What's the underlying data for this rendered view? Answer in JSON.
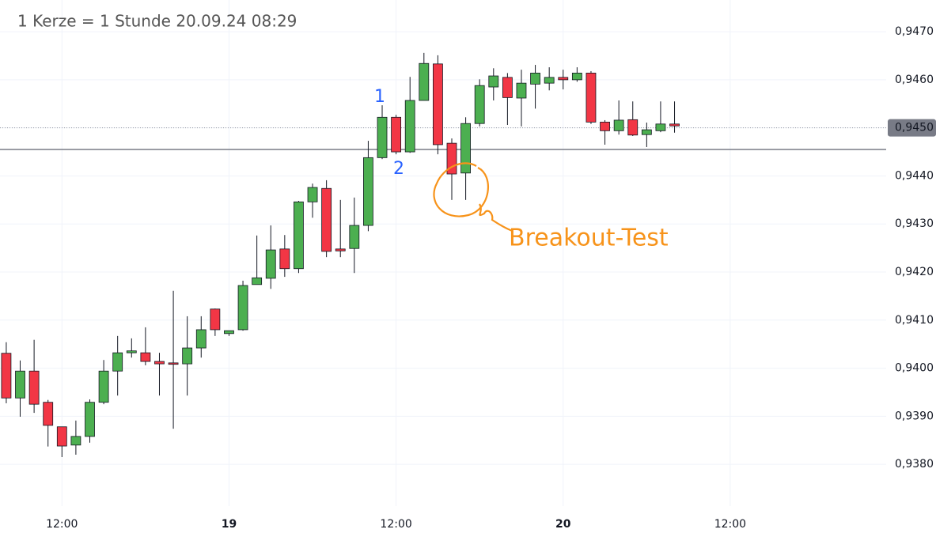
{
  "chart_data": {
    "type": "candlestick",
    "title": "1 Kerze = 1 Stunde  20.09.24  08:29",
    "x": [
      8,
      9,
      10,
      11,
      12,
      13,
      14,
      15,
      16,
      17,
      18,
      19,
      20,
      21,
      22,
      23,
      24,
      25,
      26,
      27,
      28,
      29,
      30,
      31,
      32,
      33,
      34,
      35,
      36,
      37,
      38,
      39,
      40,
      41,
      42,
      43,
      44,
      45,
      46,
      47,
      48,
      49,
      50,
      51,
      52,
      53,
      54,
      55,
      56
    ],
    "open": [
      0.94031,
      0.93938,
      0.93994,
      0.93929,
      0.93878,
      0.9384,
      0.93858,
      0.93929,
      0.93994,
      0.94032,
      0.94032,
      0.94014,
      0.94011,
      0.94009,
      0.94042,
      0.94123,
      0.94072,
      0.9408,
      0.94174,
      0.94187,
      0.94248,
      0.94207,
      0.94346,
      0.94374,
      0.94248,
      0.94249,
      0.94297,
      0.94438,
      0.94522,
      0.9445,
      0.94557,
      0.94633,
      0.94468,
      0.94406,
      0.94509,
      0.94585,
      0.94605,
      0.94562,
      0.94591,
      0.94593,
      0.94605,
      0.946,
      0.94614,
      0.94512,
      0.94494,
      0.94517,
      0.94486,
      0.94494,
      0.94508
    ],
    "high": [
      0.94054,
      0.94016,
      0.94059,
      0.93934,
      0.93878,
      0.93891,
      0.93935,
      0.94017,
      0.94067,
      0.94062,
      0.94085,
      0.94032,
      0.94161,
      0.94108,
      0.94108,
      0.94124,
      0.94078,
      0.94182,
      0.94276,
      0.94297,
      0.94277,
      0.94348,
      0.94384,
      0.94391,
      0.9435,
      0.94355,
      0.94473,
      0.94547,
      0.94527,
      0.94606,
      0.94656,
      0.94651,
      0.94478,
      0.94522,
      0.94601,
      0.94624,
      0.94614,
      0.94621,
      0.94631,
      0.94626,
      0.94621,
      0.94626,
      0.94618,
      0.94516,
      0.94557,
      0.94555,
      0.94511,
      0.94555,
      0.94555
    ],
    "low": [
      0.93927,
      0.93899,
      0.93907,
      0.93837,
      0.93815,
      0.9382,
      0.93845,
      0.93925,
      0.93943,
      0.94022,
      0.94006,
      0.93943,
      0.93874,
      0.93943,
      0.94022,
      0.94067,
      0.94067,
      0.94078,
      0.94174,
      0.94165,
      0.9419,
      0.94198,
      0.94313,
      0.94231,
      0.94231,
      0.94198,
      0.94285,
      0.94435,
      0.94445,
      0.94448,
      0.94557,
      0.94445,
      0.9435,
      0.9435,
      0.94503,
      0.94557,
      0.94506,
      0.94503,
      0.9454,
      0.94578,
      0.9458,
      0.94596,
      0.94508,
      0.94465,
      0.94486,
      0.94483,
      0.9446,
      0.94491,
      0.9449
    ],
    "close": [
      0.93938,
      0.93994,
      0.93925,
      0.93881,
      0.93838,
      0.93858,
      0.93929,
      0.93994,
      0.94032,
      0.94036,
      0.94014,
      0.94009,
      0.94008,
      0.94042,
      0.9408,
      0.9408,
      0.94078,
      0.94172,
      0.94188,
      0.94246,
      0.94207,
      0.94346,
      0.94376,
      0.94243,
      0.94244,
      0.94297,
      0.94438,
      0.94522,
      0.9445,
      0.94557,
      0.94634,
      0.94465,
      0.94404,
      0.94509,
      0.94588,
      0.94608,
      0.94563,
      0.94593,
      0.94614,
      0.94605,
      0.946,
      0.94614,
      0.94512,
      0.94494,
      0.94516,
      0.94485,
      0.94496,
      0.94508,
      0.94504
    ],
    "up_color": "#4caf50",
    "down_color": "#f23645",
    "xlim": [
      7.55,
      71.2
    ],
    "xticks": [
      {
        "value": 12,
        "label": "12:00"
      },
      {
        "value": 24,
        "label": "19"
      },
      {
        "value": 36,
        "label": "12:00"
      },
      {
        "value": 48,
        "label": "20"
      },
      {
        "value": 60,
        "label": "12:00"
      }
    ],
    "ylim": [
      0.93713,
      0.94766
    ],
    "yticks": [
      {
        "value": 0.938,
        "label": "0,9380"
      },
      {
        "value": 0.939,
        "label": "0,9390"
      },
      {
        "value": 0.94,
        "label": "0,9400"
      },
      {
        "value": 0.941,
        "label": "0,9410"
      },
      {
        "value": 0.942,
        "label": "0,9420"
      },
      {
        "value": 0.943,
        "label": "0,9430"
      },
      {
        "value": 0.944,
        "label": "0,9440"
      },
      {
        "value": 0.945,
        "label": "0,9450"
      },
      {
        "value": 0.946,
        "label": "0,9460"
      },
      {
        "value": 0.947,
        "label": "0,9470"
      }
    ],
    "grid": true,
    "last_price": {
      "value": 0.945,
      "label": "0,9450"
    },
    "level_line": 0.94455,
    "annotations": [
      "1",
      "2",
      "Breakout-Test"
    ]
  }
}
